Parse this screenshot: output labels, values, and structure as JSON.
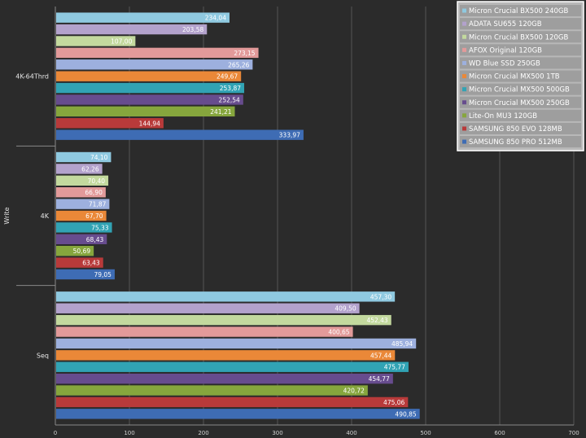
{
  "chart_data": {
    "type": "bar",
    "orientation": "horizontal",
    "ylabel": "Write",
    "categories": [
      "4K-64Thrd",
      "4K",
      "Seq"
    ],
    "xlim": [
      0,
      700
    ],
    "xticks": [
      "0",
      "100",
      "200",
      "300",
      "400",
      "500",
      "600",
      "700"
    ],
    "grid": true,
    "legend_position": "top-right",
    "series": [
      {
        "name": "Micron Crucial BX500 240GB",
        "color": "#8fc9e0",
        "values": [
          234.04,
          74.1,
          457.3
        ],
        "labels": [
          "234,04",
          "74,10",
          "457,30"
        ]
      },
      {
        "name": "ADATA SU655 120GB",
        "color": "#b3a2cc",
        "values": [
          203.58,
          62.26,
          409.5
        ],
        "labels": [
          "203,58",
          "62,26",
          "409,50"
        ]
      },
      {
        "name": "Micron Crucial BX500 120GB",
        "color": "#c3d99e",
        "values": [
          107.0,
          70.4,
          452.43
        ],
        "labels": [
          "107,00",
          "70,40",
          "452,43"
        ]
      },
      {
        "name": "AFOX Original 120GB",
        "color": "#e29a9a",
        "values": [
          273.15,
          66.9,
          400.65
        ],
        "labels": [
          "273,15",
          "66,90",
          "400,65"
        ]
      },
      {
        "name": "WD Blue SSD 250GB",
        "color": "#9db0de",
        "values": [
          265.26,
          71.87,
          485.94
        ],
        "labels": [
          "265,26",
          "71,87",
          "485,94"
        ]
      },
      {
        "name": "Micron Crucial MX500 1TB",
        "color": "#ea8838",
        "values": [
          249.67,
          67.7,
          457.44
        ],
        "labels": [
          "249,67",
          "67,70",
          "457,44"
        ]
      },
      {
        "name": "Micron Crucial MX500 500GB",
        "color": "#31a3b4",
        "values": [
          253.87,
          75.33,
          475.77
        ],
        "labels": [
          "253,87",
          "75,33",
          "475,77"
        ]
      },
      {
        "name": "Micron Crucial MX500 250GB",
        "color": "#674c8e",
        "values": [
          252.54,
          68.43,
          454.77
        ],
        "labels": [
          "252,54",
          "68,43",
          "454,77"
        ]
      },
      {
        "name": "Lite-On MU3 120GB",
        "color": "#86a63d",
        "values": [
          241.21,
          50.69,
          420.72
        ],
        "labels": [
          "241,21",
          "50,69",
          "420,72"
        ]
      },
      {
        "name": "SAMSUNG 850 EVO 128MB",
        "color": "#b83a3a",
        "values": [
          144.94,
          63.43,
          475.06
        ],
        "labels": [
          "144,94",
          "63,43",
          "475,06"
        ]
      },
      {
        "name": "SAMSUNG 850 PRO 512MB",
        "color": "#3e6cb4",
        "values": [
          333.97,
          79.05,
          490.85
        ],
        "labels": [
          "333,97",
          "79,05",
          "490,85"
        ]
      }
    ]
  }
}
